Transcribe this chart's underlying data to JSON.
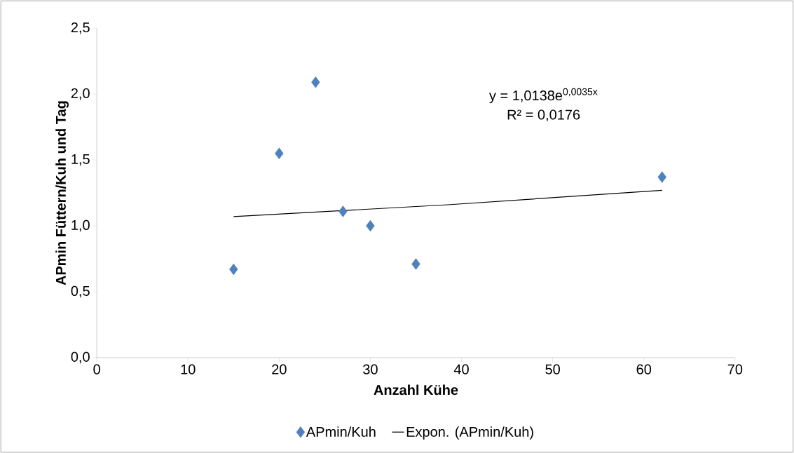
{
  "chart_data": {
    "type": "scatter",
    "xlabel": "Anzahl Kühe",
    "ylabel": "APmin Füttern/Kuh und Tag",
    "xlim": [
      0,
      70
    ],
    "xticks": [
      0,
      10,
      20,
      30,
      40,
      50,
      60,
      70
    ],
    "ylim": [
      0,
      2.5
    ],
    "yticks": [
      {
        "value": 0,
        "label": "0,0"
      },
      {
        "value": 0.5,
        "label": "0,5"
      },
      {
        "value": 1.0,
        "label": "1,0"
      },
      {
        "value": 1.5,
        "label": "1,5"
      },
      {
        "value": 2.0,
        "label": "2,0"
      },
      {
        "value": 2.5,
        "label": "2,5"
      }
    ],
    "series": [
      {
        "name": "APmin/Kuh",
        "marker": "diamond",
        "color": "#4f81bd",
        "x": [
          15,
          20,
          24,
          27,
          30,
          35,
          62
        ],
        "values": [
          0.67,
          1.55,
          2.09,
          1.11,
          1.0,
          0.71,
          1.37
        ]
      },
      {
        "name": "Expon. (APmin/Kuh)",
        "type": "line",
        "marker": "none",
        "color": "#000000",
        "x": [
          15,
          38.5,
          62
        ],
        "values": [
          1.07,
          1.16,
          1.27
        ]
      }
    ],
    "annotations": [
      "y = 1,0138e$^{0,0035x}$",
      "R² = 0,0176"
    ],
    "grid": false,
    "legend": "bottom"
  }
}
